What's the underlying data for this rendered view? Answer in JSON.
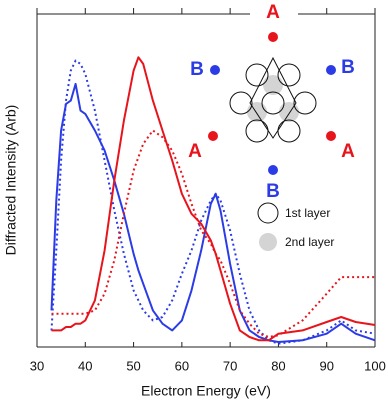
{
  "chart_data": {
    "type": "line",
    "x_label": "Electron Energy (eV)",
    "y_label": "Diffracted Intensity (Arb)",
    "xlim": [
      30,
      100
    ],
    "xticks": [
      30,
      40,
      50,
      60,
      70,
      80,
      90,
      100
    ],
    "ylim": [
      0,
      1
    ],
    "x": [
      33,
      34,
      35,
      36,
      37,
      38,
      39,
      40,
      42,
      44,
      46,
      48,
      50,
      51,
      52,
      54,
      56,
      58,
      60,
      62,
      64,
      66,
      67,
      68,
      70,
      72,
      74,
      76,
      78,
      80,
      85,
      90,
      93,
      96,
      100
    ],
    "series": [
      {
        "color": "#2b3ce6",
        "dashed": false,
        "values": [
          0.11,
          0.44,
          0.65,
          0.73,
          0.74,
          0.79,
          0.71,
          0.7,
          0.65,
          0.59,
          0.5,
          0.4,
          0.28,
          0.23,
          0.19,
          0.11,
          0.07,
          0.05,
          0.08,
          0.17,
          0.29,
          0.43,
          0.46,
          0.41,
          0.25,
          0.11,
          0.05,
          0.03,
          0.02,
          0.015,
          0.02,
          0.04,
          0.07,
          0.04,
          0.02
        ]
      },
      {
        "color": "#2b3ce6",
        "dashed": true,
        "values": [
          0.05,
          0.29,
          0.56,
          0.74,
          0.83,
          0.86,
          0.85,
          0.82,
          0.71,
          0.56,
          0.41,
          0.28,
          0.17,
          0.14,
          0.11,
          0.08,
          0.09,
          0.14,
          0.22,
          0.29,
          0.38,
          0.44,
          0.46,
          0.44,
          0.35,
          0.22,
          0.11,
          0.05,
          0.02,
          0.01,
          0.02,
          0.05,
          0.08,
          0.05,
          0.04
        ]
      },
      {
        "color": "#e8141c",
        "dashed": false,
        "values": [
          0.05,
          0.05,
          0.05,
          0.06,
          0.06,
          0.07,
          0.07,
          0.08,
          0.14,
          0.29,
          0.5,
          0.68,
          0.83,
          0.87,
          0.85,
          0.74,
          0.65,
          0.56,
          0.46,
          0.4,
          0.37,
          0.32,
          0.28,
          0.23,
          0.13,
          0.05,
          0.03,
          0.02,
          0.02,
          0.04,
          0.05,
          0.075,
          0.09,
          0.075,
          0.066
        ]
      },
      {
        "color": "#e8141c",
        "dashed": true,
        "values": [
          0.1,
          0.1,
          0.1,
          0.1,
          0.1,
          0.1,
          0.1,
          0.1,
          0.11,
          0.16,
          0.26,
          0.4,
          0.53,
          0.57,
          0.61,
          0.65,
          0.63,
          0.59,
          0.52,
          0.43,
          0.35,
          0.31,
          0.28,
          0.26,
          0.19,
          0.11,
          0.07,
          0.04,
          0.03,
          0.035,
          0.08,
          0.16,
          0.21,
          0.21,
          0.21
        ]
      }
    ],
    "inset_labels": [
      {
        "text": "A",
        "color": "#e8141c"
      },
      {
        "text": "B",
        "color": "#2b3ce6"
      },
      {
        "text": "B",
        "color": "#2b3ce6"
      },
      {
        "text": "A",
        "color": "#e8141c"
      },
      {
        "text": "A",
        "color": "#e8141c"
      },
      {
        "text": "B",
        "color": "#2b3ce6"
      }
    ],
    "inset_legend": [
      "1st layer",
      "2nd layer"
    ]
  }
}
